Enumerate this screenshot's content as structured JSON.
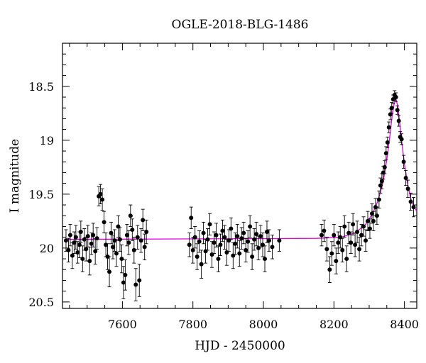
{
  "chart_data": {
    "type": "scatter",
    "title": "OGLE-2018-BLG-1486",
    "xlabel": "HJD - 2450000",
    "ylabel": "I magnitude",
    "xlim": [
      7430,
      8435
    ],
    "ylim": [
      20.56,
      18.1
    ],
    "y_inverted": true,
    "xticks": [
      7600,
      7800,
      8000,
      8200,
      8400
    ],
    "xtick_labels": [
      "7600",
      "7800",
      "8000",
      "8200",
      "8400"
    ],
    "yticks": [
      18.5,
      19,
      19.5,
      20,
      20.5
    ],
    "ytick_labels": [
      "18.5",
      "19",
      "19.5",
      "20",
      "20.5"
    ],
    "colors": {
      "points": "#000000",
      "model": "#e000e0"
    },
    "series": [
      {
        "kind": "data",
        "points": [
          [
            7440,
            19.93,
            0.1
          ],
          [
            7447,
            20.02,
            0.11
          ],
          [
            7452,
            19.88,
            0.1
          ],
          [
            7458,
            20.07,
            0.12
          ],
          [
            7463,
            19.95,
            0.1
          ],
          [
            7468,
            19.9,
            0.11
          ],
          [
            7473,
            20.04,
            0.1
          ],
          [
            7478,
            19.97,
            0.12
          ],
          [
            7482,
            19.85,
            0.1
          ],
          [
            7487,
            20.1,
            0.12
          ],
          [
            7492,
            19.92,
            0.1
          ],
          [
            7497,
            20.01,
            0.11
          ],
          [
            7502,
            19.89,
            0.1
          ],
          [
            7507,
            20.12,
            0.13
          ],
          [
            7512,
            19.96,
            0.1
          ],
          [
            7517,
            19.88,
            0.11
          ],
          [
            7523,
            20.03,
            0.12
          ],
          [
            7528,
            19.91,
            0.1
          ],
          [
            7533,
            19.52,
            0.09
          ],
          [
            7538,
            19.5,
            0.09
          ],
          [
            7543,
            19.55,
            0.1
          ],
          [
            7548,
            19.76,
            0.1
          ],
          [
            7553,
            19.97,
            0.11
          ],
          [
            7558,
            20.08,
            0.12
          ],
          [
            7563,
            20.22,
            0.14
          ],
          [
            7568,
            19.86,
            0.1
          ],
          [
            7573,
            19.99,
            0.11
          ],
          [
            7578,
            19.93,
            0.1
          ],
          [
            7583,
            20.05,
            0.12
          ],
          [
            7588,
            19.8,
            0.1
          ],
          [
            7593,
            19.92,
            0.11
          ],
          [
            7598,
            20.1,
            0.13
          ],
          [
            7603,
            20.32,
            0.15
          ],
          [
            7608,
            20.25,
            0.14
          ],
          [
            7613,
            19.88,
            0.1
          ],
          [
            7618,
            19.95,
            0.11
          ],
          [
            7623,
            19.7,
            0.1
          ],
          [
            7628,
            19.83,
            0.1
          ],
          [
            7633,
            20.02,
            0.12
          ],
          [
            7638,
            20.34,
            0.15
          ],
          [
            7643,
            19.9,
            0.11
          ],
          [
            7648,
            20.3,
            0.15
          ],
          [
            7653,
            19.93,
            0.11
          ],
          [
            7658,
            19.74,
            0.1
          ],
          [
            7663,
            19.99,
            0.12
          ],
          [
            7668,
            19.85,
            0.11
          ],
          [
            7790,
            19.97,
            0.11
          ],
          [
            7795,
            19.72,
            0.1
          ],
          [
            7800,
            20.02,
            0.12
          ],
          [
            7806,
            19.9,
            0.1
          ],
          [
            7812,
            20.08,
            0.12
          ],
          [
            7818,
            19.94,
            0.1
          ],
          [
            7824,
            20.15,
            0.13
          ],
          [
            7830,
            19.86,
            0.1
          ],
          [
            7836,
            20.03,
            0.11
          ],
          [
            7842,
            19.92,
            0.1
          ],
          [
            7848,
            19.78,
            0.1
          ],
          [
            7854,
            20.06,
            0.12
          ],
          [
            7860,
            19.95,
            0.1
          ],
          [
            7866,
            19.88,
            0.11
          ],
          [
            7872,
            20.1,
            0.12
          ],
          [
            7878,
            19.97,
            0.1
          ],
          [
            7884,
            19.84,
            0.1
          ],
          [
            7890,
            19.9,
            0.11
          ],
          [
            7896,
            20.04,
            0.12
          ],
          [
            7902,
            19.93,
            0.1
          ],
          [
            7908,
            19.82,
            0.1
          ],
          [
            7914,
            20.07,
            0.12
          ],
          [
            7920,
            19.96,
            0.1
          ],
          [
            7926,
            19.89,
            0.11
          ],
          [
            7932,
            20.05,
            0.12
          ],
          [
            7938,
            19.91,
            0.1
          ],
          [
            7944,
            19.86,
            0.1
          ],
          [
            7950,
            20.02,
            0.11
          ],
          [
            7956,
            19.94,
            0.1
          ],
          [
            7962,
            19.8,
            0.1
          ],
          [
            7968,
            20.08,
            0.12
          ],
          [
            7974,
            19.92,
            0.1
          ],
          [
            7980,
            19.87,
            0.11
          ],
          [
            7986,
            20.0,
            0.11
          ],
          [
            7992,
            19.89,
            0.1
          ],
          [
            7998,
            19.97,
            0.11
          ],
          [
            8004,
            20.1,
            0.12
          ],
          [
            8010,
            19.85,
            0.1
          ],
          [
            8016,
            19.93,
            0.1
          ],
          [
            8025,
            19.99,
            0.11
          ],
          [
            8045,
            19.93,
            0.1
          ],
          [
            8165,
            19.88,
            0.1
          ],
          [
            8172,
            19.84,
            0.1
          ],
          [
            8180,
            20.01,
            0.11
          ],
          [
            8188,
            20.2,
            0.12
          ],
          [
            8194,
            20.05,
            0.11
          ],
          [
            8200,
            19.88,
            0.1
          ],
          [
            8206,
            20.12,
            0.12
          ],
          [
            8212,
            19.95,
            0.1
          ],
          [
            8218,
            19.9,
            0.1
          ],
          [
            8224,
            20.02,
            0.11
          ],
          [
            8230,
            19.8,
            0.1
          ],
          [
            8236,
            20.1,
            0.12
          ],
          [
            8242,
            19.86,
            0.1
          ],
          [
            8248,
            19.95,
            0.1
          ],
          [
            8254,
            19.78,
            0.1
          ],
          [
            8260,
            19.97,
            0.11
          ],
          [
            8266,
            19.85,
            0.1
          ],
          [
            8272,
            20.01,
            0.11
          ],
          [
            8278,
            19.88,
            0.1
          ],
          [
            8284,
            19.8,
            0.09
          ],
          [
            8290,
            19.93,
            0.1
          ],
          [
            8296,
            19.75,
            0.09
          ],
          [
            8302,
            19.82,
            0.09
          ],
          [
            8308,
            19.68,
            0.09
          ],
          [
            8312,
            19.75,
            0.09
          ],
          [
            8318,
            19.62,
            0.08
          ],
          [
            8322,
            19.7,
            0.08
          ],
          [
            8328,
            19.55,
            0.08
          ],
          [
            8332,
            19.42,
            0.07
          ],
          [
            8336,
            19.38,
            0.07
          ],
          [
            8340,
            19.3,
            0.06
          ],
          [
            8344,
            19.25,
            0.06
          ],
          [
            8348,
            19.12,
            0.06
          ],
          [
            8352,
            19.02,
            0.05
          ],
          [
            8356,
            18.88,
            0.05
          ],
          [
            8360,
            18.76,
            0.05
          ],
          [
            8364,
            18.7,
            0.05
          ],
          [
            8368,
            18.62,
            0.04
          ],
          [
            8372,
            18.58,
            0.04
          ],
          [
            8376,
            18.6,
            0.04
          ],
          [
            8380,
            18.72,
            0.04
          ],
          [
            8384,
            18.82,
            0.05
          ],
          [
            8388,
            18.97,
            0.05
          ],
          [
            8392,
            18.99,
            0.05
          ],
          [
            8398,
            19.2,
            0.06
          ],
          [
            8404,
            19.35,
            0.07
          ],
          [
            8410,
            19.45,
            0.08
          ],
          [
            8418,
            19.57,
            0.08
          ],
          [
            8426,
            19.62,
            0.09
          ]
        ]
      },
      {
        "kind": "model",
        "points": [
          [
            7440,
            19.92
          ],
          [
            8150,
            19.91
          ],
          [
            8220,
            19.9
          ],
          [
            8260,
            19.86
          ],
          [
            8290,
            19.78
          ],
          [
            8310,
            19.68
          ],
          [
            8325,
            19.56
          ],
          [
            8340,
            19.38
          ],
          [
            8350,
            19.18
          ],
          [
            8358,
            18.98
          ],
          [
            8365,
            18.78
          ],
          [
            8371,
            18.66
          ],
          [
            8376,
            18.62
          ],
          [
            8381,
            18.68
          ],
          [
            8386,
            18.82
          ],
          [
            8392,
            19.0
          ],
          [
            8400,
            19.22
          ],
          [
            8410,
            19.42
          ],
          [
            8420,
            19.57
          ],
          [
            8435,
            19.66
          ]
        ]
      }
    ]
  }
}
